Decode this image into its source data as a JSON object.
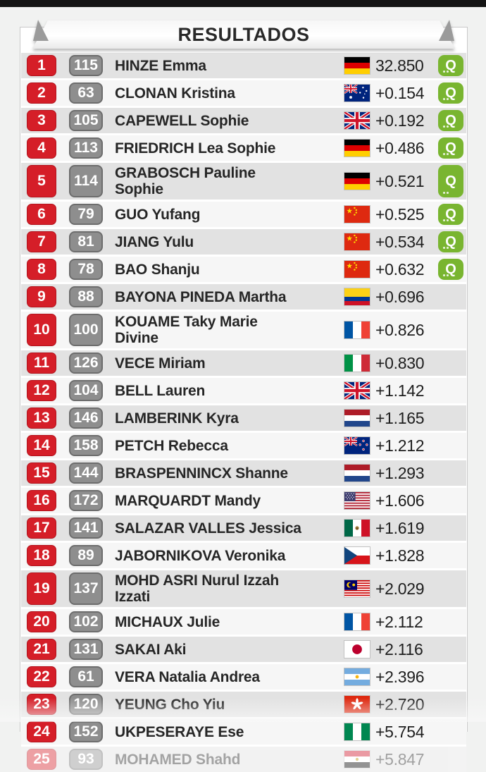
{
  "header": {
    "title": "RESULTADOS"
  },
  "colors": {
    "rank_red": "#d51e28",
    "bib_gray": "#8e8e8e",
    "qualified_green": "#79b530",
    "row_odd": "#e2e2e2",
    "row_even": "#f6f6f6",
    "top_bar": "#141414"
  },
  "qualified_label": "Q",
  "rows": [
    {
      "rank": "1",
      "bib": "115",
      "name": "HINZE Emma",
      "country": "germany",
      "gap": "32.850",
      "q": true,
      "faded": false
    },
    {
      "rank": "2",
      "bib": "63",
      "name": "CLONAN Kristina",
      "country": "australia",
      "gap": "+0.154",
      "q": true,
      "faded": false
    },
    {
      "rank": "3",
      "bib": "105",
      "name": "CAPEWELL Sophie",
      "country": "great-britain",
      "gap": "+0.192",
      "q": true,
      "faded": false
    },
    {
      "rank": "4",
      "bib": "113",
      "name": "FRIEDRICH Lea Sophie",
      "country": "germany",
      "gap": "+0.486",
      "q": true,
      "faded": false
    },
    {
      "rank": "5",
      "bib": "114",
      "name": "GRABOSCH Pauline\nSophie",
      "country": "germany",
      "gap": "+0.521",
      "q": true,
      "faded": false
    },
    {
      "rank": "6",
      "bib": "79",
      "name": "GUO Yufang",
      "country": "china",
      "gap": "+0.525",
      "q": true,
      "faded": false
    },
    {
      "rank": "7",
      "bib": "81",
      "name": "JIANG Yulu",
      "country": "china",
      "gap": "+0.534",
      "q": true,
      "faded": false
    },
    {
      "rank": "8",
      "bib": "78",
      "name": "BAO Shanju",
      "country": "china",
      "gap": "+0.632",
      "q": true,
      "faded": false
    },
    {
      "rank": "9",
      "bib": "88",
      "name": "BAYONA PINEDA Martha",
      "country": "colombia",
      "gap": "+0.696",
      "q": false,
      "faded": false
    },
    {
      "rank": "10",
      "bib": "100",
      "name": "KOUAME Taky Marie\nDivine",
      "country": "france",
      "gap": "+0.826",
      "q": false,
      "faded": false
    },
    {
      "rank": "11",
      "bib": "126",
      "name": "VECE Miriam",
      "country": "italy",
      "gap": "+0.830",
      "q": false,
      "faded": false
    },
    {
      "rank": "12",
      "bib": "104",
      "name": "BELL Lauren",
      "country": "great-britain",
      "gap": "+1.142",
      "q": false,
      "faded": false
    },
    {
      "rank": "13",
      "bib": "146",
      "name": "LAMBERINK Kyra",
      "country": "netherlands",
      "gap": "+1.165",
      "q": false,
      "faded": false
    },
    {
      "rank": "14",
      "bib": "158",
      "name": "PETCH Rebecca",
      "country": "new-zealand",
      "gap": "+1.212",
      "q": false,
      "faded": false
    },
    {
      "rank": "15",
      "bib": "144",
      "name": "BRASPENNINCX Shanne",
      "country": "netherlands",
      "gap": "+1.293",
      "q": false,
      "faded": false
    },
    {
      "rank": "16",
      "bib": "172",
      "name": "MARQUARDT Mandy",
      "country": "usa",
      "gap": "+1.606",
      "q": false,
      "faded": false
    },
    {
      "rank": "17",
      "bib": "141",
      "name": "SALAZAR VALLES Jessica",
      "country": "mexico",
      "gap": "+1.619",
      "q": false,
      "faded": false
    },
    {
      "rank": "18",
      "bib": "89",
      "name": "JABORNIKOVA Veronika",
      "country": "czechia",
      "gap": "+1.828",
      "q": false,
      "faded": false
    },
    {
      "rank": "19",
      "bib": "137",
      "name": "MOHD ASRI Nurul Izzah\nIzzati",
      "country": "malaysia",
      "gap": "+2.029",
      "q": false,
      "faded": false
    },
    {
      "rank": "20",
      "bib": "102",
      "name": "MICHAUX Julie",
      "country": "france",
      "gap": "+2.112",
      "q": false,
      "faded": false
    },
    {
      "rank": "21",
      "bib": "131",
      "name": "SAKAI Aki",
      "country": "japan",
      "gap": "+2.116",
      "q": false,
      "faded": false
    },
    {
      "rank": "22",
      "bib": "61",
      "name": "VERA Natalia Andrea",
      "country": "argentina",
      "gap": "+2.396",
      "q": false,
      "faded": false
    },
    {
      "rank": "23",
      "bib": "120",
      "name": "YEUNG Cho Yiu",
      "country": "hong-kong",
      "gap": "+2.720",
      "q": false,
      "faded": false
    },
    {
      "rank": "24",
      "bib": "152",
      "name": "UKPESERAYE Ese",
      "country": "nigeria",
      "gap": "+5.754",
      "q": false,
      "faded": false
    },
    {
      "rank": "25",
      "bib": "93",
      "name": "MOHAMED Shahd",
      "country": "egypt",
      "gap": "+5.847",
      "q": false,
      "faded": true
    }
  ]
}
